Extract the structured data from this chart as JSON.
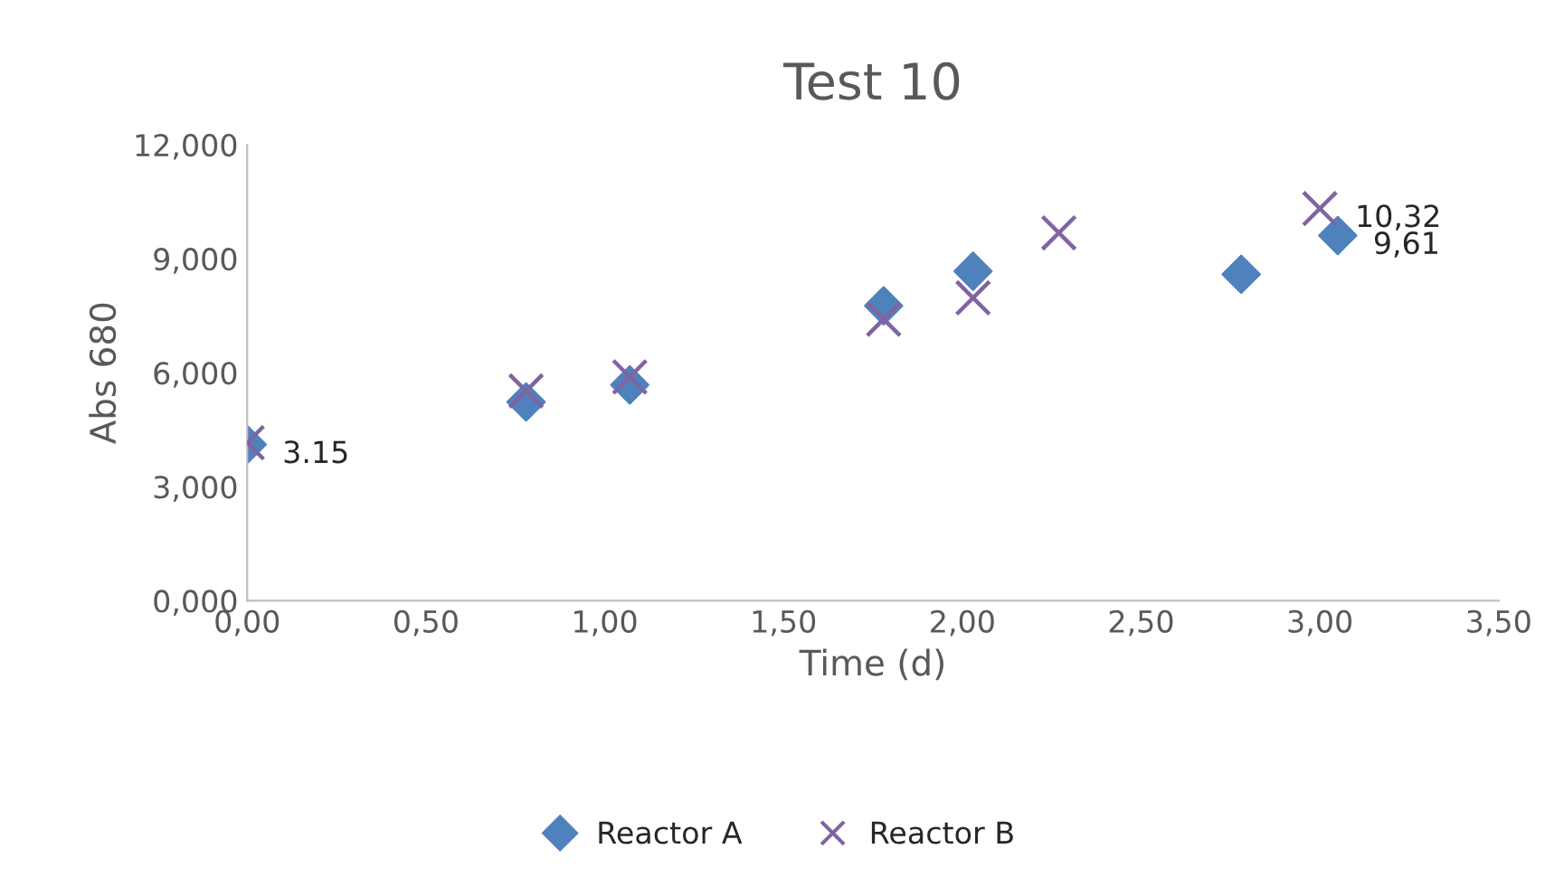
{
  "chart_data": {
    "type": "scatter",
    "title": "Test 10",
    "xlabel": "Time (d)",
    "ylabel": "Abs 680",
    "series": [
      {
        "name": "Reactor A",
        "color": "#4f81bd",
        "marker": "diamond",
        "x": [
          0,
          0.78,
          1.07,
          1.78,
          2.03,
          2.78,
          3.05
        ],
        "values": [
          4.11,
          5.23,
          5.68,
          7.76,
          8.67,
          8.59,
          9.61
        ]
      },
      {
        "name": "Reactor B",
        "color": "#8064a2",
        "marker": "cross",
        "x": [
          0,
          0.78,
          1.07,
          1.78,
          2.03,
          2.27,
          3.0
        ],
        "values": [
          4.16,
          5.52,
          5.89,
          7.41,
          7.97,
          9.68,
          10.32
        ]
      }
    ],
    "annotations": [
      {
        "text": "3.15",
        "x": 0,
        "y": 4.11
      },
      {
        "text": "10,32",
        "x": 3.0,
        "y": 10.32
      },
      {
        "text": "9,61",
        "x": 3.05,
        "y": 9.61
      }
    ],
    "xlim": [
      0,
      3.5
    ],
    "ylim": [
      0,
      12
    ],
    "xticks": [
      {
        "value": 0,
        "label": "0,00"
      },
      {
        "value": 0.5,
        "label": "0,50"
      },
      {
        "value": 1,
        "label": "1,00"
      },
      {
        "value": 1.5,
        "label": "1,50"
      },
      {
        "value": 2,
        "label": "2,00"
      },
      {
        "value": 2.5,
        "label": "2,50"
      },
      {
        "value": 3,
        "label": "3,00"
      },
      {
        "value": 3.5,
        "label": "3,50"
      }
    ],
    "yticks": [
      {
        "value": 0,
        "label": "0,000"
      },
      {
        "value": 3,
        "label": "3,000"
      },
      {
        "value": 6,
        "label": "6,000"
      },
      {
        "value": 9,
        "label": "9,000"
      },
      {
        "value": 12,
        "label": "12,000"
      }
    ],
    "grid": false,
    "legend": "bottom"
  }
}
